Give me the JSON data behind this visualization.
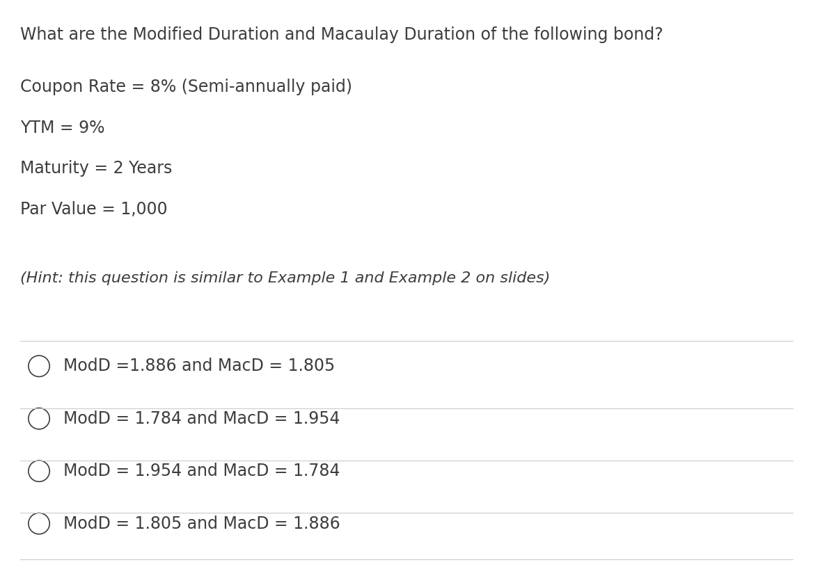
{
  "title": "What are the Modified Duration and Macaulay Duration of the following bond?",
  "params": [
    "Coupon Rate = 8% (Semi-annually paid)",
    "YTM = 9%",
    "Maturity = 2 Years",
    "Par Value = 1,000"
  ],
  "hint": "(Hint: this question is similar to Example 1 and Example 2 on slides)",
  "options": [
    "ModD =1.886 and MacD = 1.805",
    "ModD = 1.784 and MacD = 1.954",
    "ModD = 1.954 and MacD = 1.784",
    "ModD = 1.805 and MacD = 1.886"
  ],
  "background_color": "#ffffff",
  "text_color": "#3d3d3d",
  "line_color": "#cccccc",
  "circle_color": "#3d3d3d",
  "title_fontsize": 17,
  "param_fontsize": 17,
  "hint_fontsize": 16,
  "option_fontsize": 17,
  "figwidth": 11.68,
  "figheight": 8.38
}
